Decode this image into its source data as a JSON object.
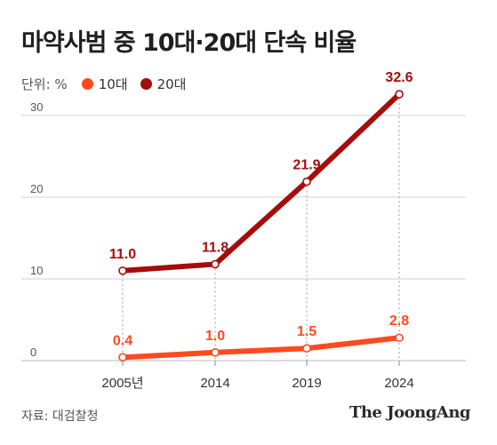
{
  "title": "마약사범 중 10대·20대 단속 비율",
  "unit_label": "단위: %",
  "source": "자료: 대검찰청",
  "brand": "The JoongAng",
  "colors": {
    "teen": "#ff4a1f",
    "twenties": "#a50d0d",
    "grid": "#d0d0d0",
    "guide": "#999999"
  },
  "chart_data": {
    "type": "line",
    "x": [
      "2005년",
      "2014",
      "2019",
      "2024"
    ],
    "ylim": [
      0,
      35
    ],
    "yticks": [
      0,
      10,
      20,
      30
    ],
    "grid": true,
    "legend_position": "top-left",
    "series": [
      {
        "name": "10대",
        "color": "#ff4a1f",
        "values": [
          0.4,
          1.0,
          1.5,
          2.8
        ],
        "labels": [
          "0.4",
          "1.0",
          "1.5",
          "2.8"
        ]
      },
      {
        "name": "20대",
        "color": "#a50d0d",
        "values": [
          11.0,
          11.8,
          21.9,
          32.6
        ],
        "labels": [
          "11.0",
          "11.8",
          "21.9",
          "32.6"
        ]
      }
    ]
  }
}
